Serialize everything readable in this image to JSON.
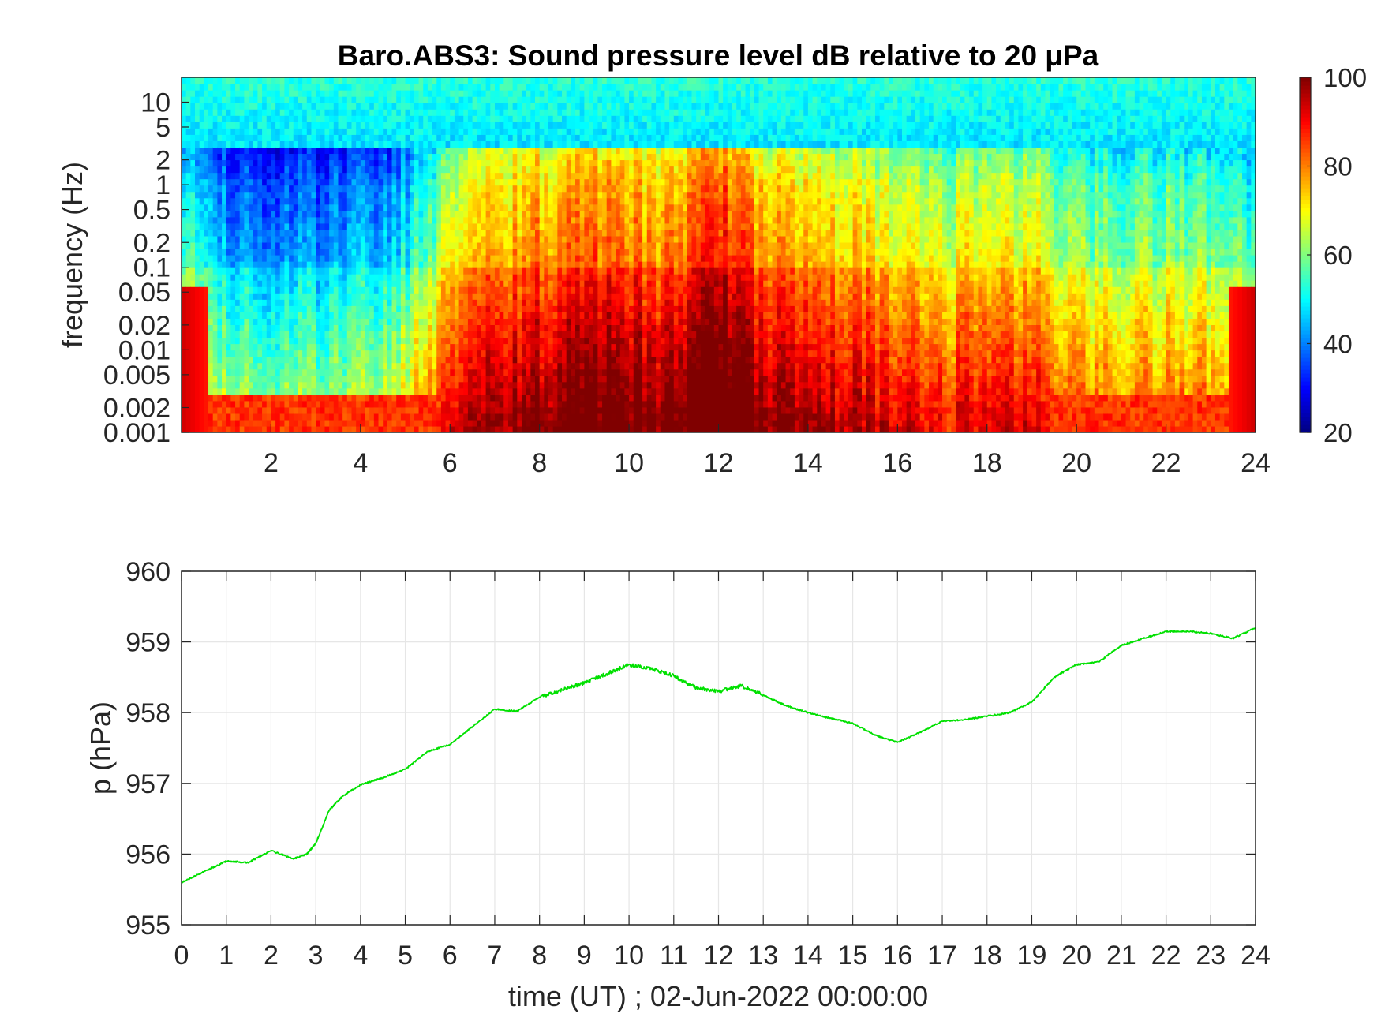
{
  "chart_data": [
    {
      "type": "heatmap",
      "title": "Baro.ABS3: Sound pressure level dB relative to 20 μPa",
      "ylabel": "frequency (Hz)",
      "xlabel": "",
      "xlim": [
        0,
        24
      ],
      "ylim": [
        0.001,
        20
      ],
      "yscale": "log",
      "x_ticks": [
        2,
        4,
        6,
        8,
        10,
        12,
        14,
        16,
        18,
        20,
        22,
        24
      ],
      "y_ticks": [
        0.001,
        0.002,
        0.005,
        0.01,
        0.02,
        0.05,
        0.1,
        0.2,
        0.5,
        1,
        2,
        5,
        10
      ],
      "y_tick_labels": [
        "0.001",
        "0.002",
        "0.005",
        "0.01",
        "0.02",
        "0.05",
        "0.1",
        "0.2",
        "0.5",
        "1",
        "2",
        "5",
        "10"
      ],
      "colormap": "jet",
      "colorbar": {
        "range": [
          20,
          100
        ],
        "ticks": [
          20,
          40,
          60,
          80,
          100
        ]
      },
      "activity_profile": {
        "hours": [
          0,
          1,
          2,
          3,
          4,
          5,
          6,
          7,
          8,
          9,
          10,
          11,
          12,
          13,
          14,
          15,
          16,
          17,
          18,
          19,
          20,
          21,
          22,
          23,
          24
        ],
        "level_db_at_0_1Hz": [
          58,
          45,
          43,
          43,
          44,
          50,
          68,
          78,
          80,
          82,
          82,
          80,
          90,
          78,
          78,
          74,
          72,
          66,
          74,
          70,
          62,
          60,
          62,
          60,
          58
        ]
      }
    },
    {
      "type": "line",
      "title": "",
      "xlabel": "time (UT) ; 02-Jun-2022 00:00:00",
      "ylabel": "p (hPa)",
      "xlim": [
        0,
        24
      ],
      "ylim": [
        955,
        960
      ],
      "x_ticks": [
        0,
        1,
        2,
        3,
        4,
        5,
        6,
        7,
        8,
        9,
        10,
        11,
        12,
        13,
        14,
        15,
        16,
        17,
        18,
        19,
        20,
        21,
        22,
        23,
        24
      ],
      "y_ticks": [
        955,
        956,
        957,
        958,
        959,
        960
      ],
      "grid": true,
      "series": [
        {
          "color": "#00e000",
          "x": [
            0,
            0.5,
            1,
            1.5,
            2,
            2.5,
            2.8,
            3,
            3.3,
            3.6,
            4,
            4.5,
            5,
            5.5,
            6,
            6.5,
            7,
            7.5,
            8,
            8.5,
            9,
            9.5,
            10,
            10.5,
            11,
            11.5,
            12,
            12.5,
            13,
            13.5,
            14,
            14.5,
            15,
            15.5,
            16,
            16.5,
            17,
            17.5,
            18,
            18.5,
            19,
            19.5,
            20,
            20.5,
            21,
            21.5,
            22,
            22.5,
            23,
            23.5,
            24
          ],
          "y": [
            955.6,
            955.75,
            955.9,
            955.88,
            956.05,
            955.93,
            956.0,
            956.15,
            956.62,
            956.82,
            956.98,
            957.08,
            957.2,
            957.45,
            957.55,
            957.8,
            958.05,
            958.02,
            958.22,
            958.32,
            958.42,
            958.55,
            958.68,
            958.62,
            958.52,
            958.35,
            958.3,
            958.38,
            958.25,
            958.1,
            958.0,
            957.92,
            957.85,
            957.68,
            957.58,
            957.72,
            957.88,
            957.9,
            957.95,
            958.0,
            958.15,
            958.5,
            958.68,
            958.72,
            958.95,
            959.05,
            959.15,
            959.15,
            959.12,
            959.05,
            959.2
          ]
        }
      ]
    }
  ],
  "colors": {
    "line": "#00e000",
    "axes": "#262626",
    "grid": "#e6e6e6"
  }
}
